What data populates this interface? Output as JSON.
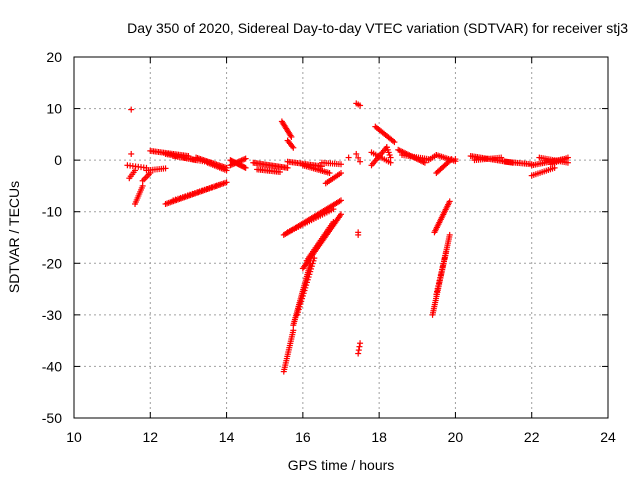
{
  "chart_data": {
    "type": "scatter",
    "title": "Day 350 of 2020, Sidereal Day-to-day VTEC variation (SDTVAR) for receiver stj3",
    "xlabel": "GPS time / hours",
    "ylabel": "SDTVAR / TECUs",
    "xlim": [
      10,
      24
    ],
    "ylim": [
      -50,
      20
    ],
    "xticks": [
      "10",
      "12",
      "14",
      "16",
      "18",
      "20",
      "22",
      "24"
    ],
    "yticks": [
      "20",
      "10",
      "0",
      "-10",
      "-20",
      "-30",
      "-40",
      "-50"
    ],
    "grid": true,
    "marker": "plus",
    "color": "#ff0000",
    "segments": [
      {
        "x0": 11.5,
        "y0": 9.8,
        "x1": 11.5,
        "y1": 9.8,
        "n": 1
      },
      {
        "x0": 11.5,
        "y0": 1.2,
        "x1": 11.5,
        "y1": 1.2,
        "n": 1
      },
      {
        "x0": 11.4,
        "y0": -1.0,
        "x1": 11.9,
        "y1": -1.5,
        "n": 8
      },
      {
        "x0": 11.45,
        "y0": -3.5,
        "x1": 11.6,
        "y1": -2.0,
        "n": 5
      },
      {
        "x0": 11.6,
        "y0": -8.5,
        "x1": 11.8,
        "y1": -5.0,
        "n": 10
      },
      {
        "x0": 11.8,
        "y0": -4.0,
        "x1": 12.0,
        "y1": -2.5,
        "n": 6
      },
      {
        "x0": 11.9,
        "y0": -2.0,
        "x1": 12.4,
        "y1": -1.6,
        "n": 10
      },
      {
        "x0": 12.0,
        "y0": 1.8,
        "x1": 13.0,
        "y1": 0.8,
        "n": 24
      },
      {
        "x0": 12.4,
        "y0": 1.2,
        "x1": 13.2,
        "y1": 0.0,
        "n": 18
      },
      {
        "x0": 12.6,
        "y0": 0.8,
        "x1": 13.6,
        "y1": -0.5,
        "n": 18
      },
      {
        "x0": 13.2,
        "y0": 0.5,
        "x1": 14.0,
        "y1": -1.5,
        "n": 22
      },
      {
        "x0": 13.5,
        "y0": -0.5,
        "x1": 14.0,
        "y1": -2.0,
        "n": 12
      },
      {
        "x0": 14.1,
        "y0": 0.0,
        "x1": 14.5,
        "y1": -1.5,
        "n": 14
      },
      {
        "x0": 14.1,
        "y0": -1.0,
        "x1": 14.5,
        "y1": 0.3,
        "n": 12
      },
      {
        "x0": 14.7,
        "y0": -0.5,
        "x1": 15.6,
        "y1": -1.5,
        "n": 24
      },
      {
        "x0": 14.8,
        "y0": -1.8,
        "x1": 15.4,
        "y1": -2.3,
        "n": 14
      },
      {
        "x0": 15.6,
        "y0": -0.3,
        "x1": 16.5,
        "y1": -1.2,
        "n": 22
      },
      {
        "x0": 16.0,
        "y0": -1.0,
        "x1": 16.7,
        "y1": -2.5,
        "n": 16
      },
      {
        "x0": 16.5,
        "y0": -0.5,
        "x1": 17.0,
        "y1": -0.8,
        "n": 10
      },
      {
        "x0": 12.4,
        "y0": -8.5,
        "x1": 14.0,
        "y1": -4.3,
        "n": 40
      },
      {
        "x0": 12.6,
        "y0": -7.8,
        "x1": 13.8,
        "y1": -4.8,
        "n": 20
      },
      {
        "x0": 15.5,
        "y0": -14.5,
        "x1": 17.0,
        "y1": -7.8,
        "n": 40
      },
      {
        "x0": 15.6,
        "y0": -14.0,
        "x1": 16.8,
        "y1": -9.5,
        "n": 22
      },
      {
        "x0": 16.6,
        "y0": -4.5,
        "x1": 17.0,
        "y1": -2.5,
        "n": 10
      },
      {
        "x0": 15.45,
        "y0": 7.5,
        "x1": 15.7,
        "y1": 4.5,
        "n": 12
      },
      {
        "x0": 15.6,
        "y0": 3.8,
        "x1": 15.75,
        "y1": 2.4,
        "n": 6
      },
      {
        "x0": 15.5,
        "y0": -41.0,
        "x1": 15.75,
        "y1": -33.0,
        "n": 20
      },
      {
        "x0": 15.75,
        "y0": -32.0,
        "x1": 16.2,
        "y1": -20.0,
        "n": 34
      },
      {
        "x0": 15.85,
        "y0": -30.0,
        "x1": 16.3,
        "y1": -19.0,
        "n": 22
      },
      {
        "x0": 16.0,
        "y0": -21.0,
        "x1": 17.0,
        "y1": -10.5,
        "n": 36
      },
      {
        "x0": 16.1,
        "y0": -19.5,
        "x1": 16.8,
        "y1": -12.0,
        "n": 22
      },
      {
        "x0": 17.4,
        "y0": 11.0,
        "x1": 17.5,
        "y1": 10.6,
        "n": 3
      },
      {
        "x0": 17.2,
        "y0": 0.5,
        "x1": 17.3,
        "y1": 0.5,
        "n": 1
      },
      {
        "x0": 17.4,
        "y0": 1.2,
        "x1": 17.5,
        "y1": -0.3,
        "n": 3
      },
      {
        "x0": 17.45,
        "y0": -14.5,
        "x1": 17.45,
        "y1": -14.0,
        "n": 2
      },
      {
        "x0": 17.45,
        "y0": -37.5,
        "x1": 17.5,
        "y1": -35.5,
        "n": 4
      },
      {
        "x0": 17.8,
        "y0": -1.0,
        "x1": 18.2,
        "y1": 2.5,
        "n": 12
      },
      {
        "x0": 17.8,
        "y0": 1.5,
        "x1": 18.3,
        "y1": -0.5,
        "n": 10
      },
      {
        "x0": 17.9,
        "y0": 6.5,
        "x1": 18.4,
        "y1": 3.5,
        "n": 14
      },
      {
        "x0": 18.2,
        "y0": 2.5,
        "x1": 18.3,
        "y1": 0.5,
        "n": 5
      },
      {
        "x0": 18.5,
        "y0": 2.0,
        "x1": 19.2,
        "y1": -0.5,
        "n": 20
      },
      {
        "x0": 18.6,
        "y0": 1.0,
        "x1": 19.3,
        "y1": 0.2,
        "n": 14
      },
      {
        "x0": 19.3,
        "y0": 0.0,
        "x1": 19.5,
        "y1": 1.0,
        "n": 5
      },
      {
        "x0": 19.5,
        "y0": -2.5,
        "x1": 19.9,
        "y1": 0.2,
        "n": 12
      },
      {
        "x0": 19.5,
        "y0": 1.0,
        "x1": 20.0,
        "y1": -0.2,
        "n": 12
      },
      {
        "x0": 20.0,
        "y0": 0.2,
        "x1": 20.0,
        "y1": 0.2,
        "n": 1
      },
      {
        "x0": 19.45,
        "y0": -14.0,
        "x1": 19.85,
        "y1": -8.0,
        "n": 20
      },
      {
        "x0": 19.4,
        "y0": -30.0,
        "x1": 19.85,
        "y1": -14.5,
        "n": 40
      },
      {
        "x0": 19.5,
        "y0": -26.0,
        "x1": 19.75,
        "y1": -18.0,
        "n": 16
      },
      {
        "x0": 20.4,
        "y0": 0.8,
        "x1": 21.5,
        "y1": -0.5,
        "n": 26
      },
      {
        "x0": 20.5,
        "y0": 0.0,
        "x1": 21.2,
        "y1": 0.5,
        "n": 14
      },
      {
        "x0": 21.3,
        "y0": -0.3,
        "x1": 22.0,
        "y1": -0.8,
        "n": 16
      },
      {
        "x0": 22.0,
        "y0": -1.0,
        "x1": 22.9,
        "y1": 0.3,
        "n": 20
      },
      {
        "x0": 22.2,
        "y0": 0.5,
        "x1": 22.95,
        "y1": -0.5,
        "n": 16
      },
      {
        "x0": 22.0,
        "y0": -3.0,
        "x1": 22.6,
        "y1": -1.5,
        "n": 12
      },
      {
        "x0": 22.5,
        "y0": -0.8,
        "x1": 22.95,
        "y1": 0.5,
        "n": 10
      }
    ]
  }
}
